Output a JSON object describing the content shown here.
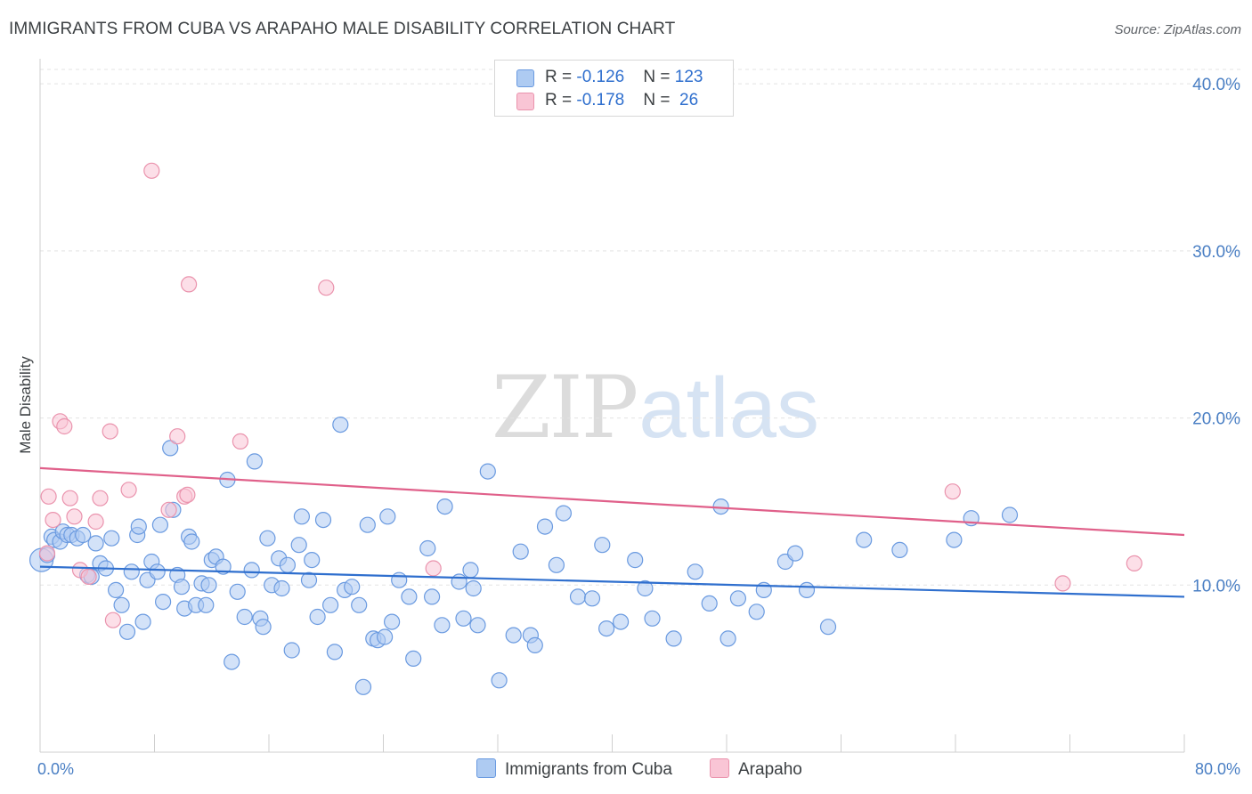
{
  "title": "IMMIGRANTS FROM CUBA VS ARAPAHO MALE DISABILITY CORRELATION CHART",
  "source": "Source: ZipAtlas.com",
  "watermark": {
    "zip": "ZIP",
    "atlas": "atlas"
  },
  "legend": {
    "rows": [
      {
        "r_label": "R = ",
        "r_value": "-0.126",
        "n_label": "N = ",
        "n_value": "123",
        "color": "#aecbf2",
        "border": "#6a9ae0"
      },
      {
        "r_label": "R = ",
        "r_value": "-0.178",
        "n_label": "N = ",
        "n_value": " 26",
        "color": "#f9c5d5",
        "border": "#ea93ad"
      }
    ]
  },
  "chart_data": {
    "type": "scatter",
    "title": "IMMIGRANTS FROM CUBA VS ARAPAHO MALE DISABILITY CORRELATION CHART",
    "xlabel": "",
    "ylabel": "Male Disability",
    "xlim": [
      0,
      80
    ],
    "ylim": [
      0,
      41.5
    ],
    "x_tick_labels": [
      "0.0%",
      "80.0%"
    ],
    "y_ticks": [
      10,
      20,
      30,
      40
    ],
    "y_tick_labels": [
      "10.0%",
      "20.0%",
      "30.0%",
      "40.0%"
    ],
    "grid": true,
    "legend_position": "bottom-center",
    "series": [
      {
        "name": "Immigrants from Cuba",
        "color": "#aecbf2",
        "edge": "#6a9ae0",
        "line_color": "#2f6fce",
        "trend": [
          [
            0,
            11.1
          ],
          [
            80,
            9.3
          ]
        ],
        "points": [
          [
            0.1,
            11.5
          ],
          [
            0.5,
            11.8
          ],
          [
            0.8,
            12.9
          ],
          [
            1.0,
            12.7
          ],
          [
            1.4,
            12.6
          ],
          [
            1.6,
            13.2
          ],
          [
            1.9,
            13.0
          ],
          [
            2.2,
            13.0
          ],
          [
            2.6,
            12.8
          ],
          [
            3.0,
            13.0
          ],
          [
            3.3,
            10.6
          ],
          [
            3.6,
            10.5
          ],
          [
            3.9,
            12.5
          ],
          [
            4.2,
            11.3
          ],
          [
            4.6,
            11.0
          ],
          [
            5.0,
            12.8
          ],
          [
            5.3,
            9.7
          ],
          [
            5.7,
            8.8
          ],
          [
            6.1,
            7.2
          ],
          [
            6.4,
            10.8
          ],
          [
            6.8,
            13.0
          ],
          [
            6.9,
            13.5
          ],
          [
            7.2,
            7.8
          ],
          [
            7.5,
            10.3
          ],
          [
            7.8,
            11.4
          ],
          [
            8.2,
            10.8
          ],
          [
            8.4,
            13.6
          ],
          [
            8.6,
            9.0
          ],
          [
            9.1,
            18.2
          ],
          [
            9.3,
            14.5
          ],
          [
            9.6,
            10.6
          ],
          [
            9.9,
            9.9
          ],
          [
            10.1,
            8.6
          ],
          [
            10.4,
            12.9
          ],
          [
            10.6,
            12.6
          ],
          [
            10.9,
            8.8
          ],
          [
            11.3,
            10.1
          ],
          [
            11.6,
            8.8
          ],
          [
            11.8,
            10.0
          ],
          [
            12.0,
            11.5
          ],
          [
            12.3,
            11.7
          ],
          [
            12.8,
            11.1
          ],
          [
            13.1,
            16.3
          ],
          [
            13.4,
            5.4
          ],
          [
            13.8,
            9.6
          ],
          [
            14.3,
            8.1
          ],
          [
            14.8,
            10.9
          ],
          [
            15.0,
            17.4
          ],
          [
            15.4,
            8.0
          ],
          [
            15.6,
            7.5
          ],
          [
            15.9,
            12.8
          ],
          [
            16.2,
            10.0
          ],
          [
            16.7,
            11.6
          ],
          [
            16.9,
            9.8
          ],
          [
            17.3,
            11.2
          ],
          [
            17.6,
            6.1
          ],
          [
            18.1,
            12.4
          ],
          [
            18.3,
            14.1
          ],
          [
            18.8,
            10.3
          ],
          [
            19.0,
            11.5
          ],
          [
            19.4,
            8.1
          ],
          [
            19.8,
            13.9
          ],
          [
            20.3,
            8.8
          ],
          [
            20.6,
            6.0
          ],
          [
            21.0,
            19.6
          ],
          [
            21.3,
            9.7
          ],
          [
            21.8,
            9.9
          ],
          [
            22.3,
            8.8
          ],
          [
            22.6,
            3.9
          ],
          [
            22.9,
            13.6
          ],
          [
            23.3,
            6.8
          ],
          [
            23.6,
            6.7
          ],
          [
            24.1,
            6.9
          ],
          [
            24.3,
            14.1
          ],
          [
            24.6,
            7.8
          ],
          [
            25.1,
            10.3
          ],
          [
            25.8,
            9.3
          ],
          [
            26.1,
            5.6
          ],
          [
            27.1,
            12.2
          ],
          [
            27.4,
            9.3
          ],
          [
            28.1,
            7.6
          ],
          [
            28.3,
            14.7
          ],
          [
            29.3,
            10.2
          ],
          [
            29.6,
            8.0
          ],
          [
            30.1,
            10.9
          ],
          [
            30.3,
            9.8
          ],
          [
            30.6,
            7.6
          ],
          [
            31.3,
            16.8
          ],
          [
            32.1,
            4.3
          ],
          [
            33.1,
            7.0
          ],
          [
            33.6,
            12.0
          ],
          [
            34.3,
            7.0
          ],
          [
            34.6,
            6.4
          ],
          [
            35.3,
            13.5
          ],
          [
            36.1,
            11.2
          ],
          [
            36.6,
            14.3
          ],
          [
            37.6,
            9.3
          ],
          [
            38.6,
            9.2
          ],
          [
            39.3,
            12.4
          ],
          [
            39.6,
            7.4
          ],
          [
            40.6,
            7.8
          ],
          [
            41.6,
            11.5
          ],
          [
            42.3,
            9.8
          ],
          [
            42.8,
            8.0
          ],
          [
            44.3,
            6.8
          ],
          [
            45.8,
            10.8
          ],
          [
            46.8,
            8.9
          ],
          [
            47.6,
            14.7
          ],
          [
            48.1,
            6.8
          ],
          [
            48.8,
            9.2
          ],
          [
            50.1,
            8.4
          ],
          [
            50.6,
            9.7
          ],
          [
            52.1,
            11.4
          ],
          [
            52.8,
            11.9
          ],
          [
            53.6,
            9.7
          ],
          [
            55.1,
            7.5
          ],
          [
            57.6,
            12.7
          ],
          [
            60.1,
            12.1
          ],
          [
            63.9,
            12.7
          ],
          [
            65.1,
            14.0
          ],
          [
            67.8,
            14.2
          ]
        ]
      },
      {
        "name": "Arapaho",
        "color": "#f9c5d5",
        "edge": "#ea93ad",
        "line_color": "#e0608a",
        "trend": [
          [
            0,
            17.0
          ],
          [
            80,
            13.0
          ]
        ],
        "points": [
          [
            0.5,
            11.9
          ],
          [
            0.6,
            15.3
          ],
          [
            0.9,
            13.9
          ],
          [
            1.4,
            19.8
          ],
          [
            1.7,
            19.5
          ],
          [
            2.1,
            15.2
          ],
          [
            2.4,
            14.1
          ],
          [
            2.8,
            10.9
          ],
          [
            3.4,
            10.5
          ],
          [
            3.9,
            13.8
          ],
          [
            4.2,
            15.2
          ],
          [
            4.9,
            19.2
          ],
          [
            5.1,
            7.9
          ],
          [
            6.2,
            15.7
          ],
          [
            7.8,
            34.8
          ],
          [
            9.0,
            14.5
          ],
          [
            9.6,
            18.9
          ],
          [
            10.1,
            15.3
          ],
          [
            10.3,
            15.4
          ],
          [
            10.4,
            28.0
          ],
          [
            14.0,
            18.6
          ],
          [
            20.0,
            27.8
          ],
          [
            27.5,
            11.0
          ],
          [
            63.8,
            15.6
          ],
          [
            71.5,
            10.1
          ],
          [
            76.5,
            11.3
          ]
        ]
      }
    ]
  }
}
